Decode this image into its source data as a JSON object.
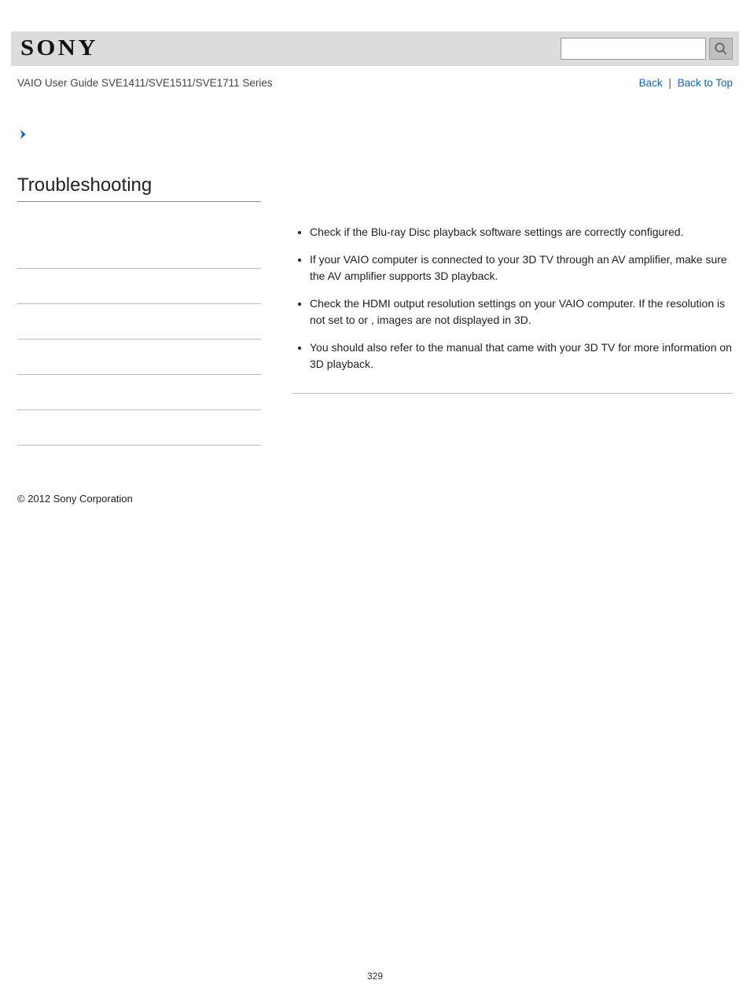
{
  "header": {
    "logo_text": "SONY",
    "search_placeholder": ""
  },
  "subheader": {
    "guide_title": "VAIO User Guide SVE1411/SVE1511/SVE1711 Series",
    "back_label": "Back",
    "back_to_top_label": "Back to Top",
    "separator": "|"
  },
  "sidebar": {
    "page_title": "Troubleshooting",
    "row_count": 6
  },
  "main": {
    "bullets": [
      "Check if the Blu-ray Disc playback software settings are correctly configured.",
      "If your VAIO computer is connected to your 3D TV through an AV amplifier, make sure the AV amplifier supports 3D playback.",
      "Check the HDMI output resolution settings on your VAIO computer. If the resolution is not set to                      or               , images are not displayed in 3D.",
      "You should also refer to the manual that came with your 3D TV for more information on 3D playback."
    ]
  },
  "footer": {
    "copyright": "© 2012 Sony Corporation",
    "page_number": "329"
  },
  "colors": {
    "header_bg": "#dcdcdc",
    "link": "#0b66c3",
    "text": "#222222",
    "border": "#bbbbbb"
  }
}
